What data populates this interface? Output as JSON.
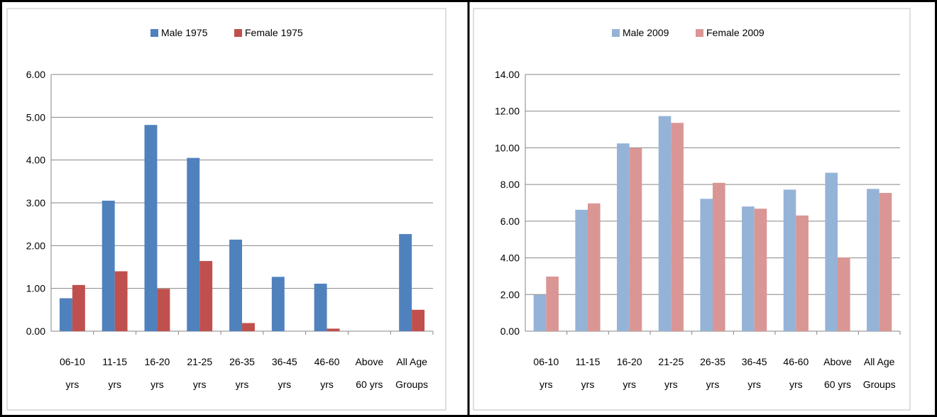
{
  "chart_data": [
    {
      "type": "bar",
      "categories": [
        [
          "06-10",
          "yrs"
        ],
        [
          "11-15",
          "yrs"
        ],
        [
          "16-20",
          "yrs"
        ],
        [
          "21-25",
          "yrs"
        ],
        [
          "26-35",
          "yrs"
        ],
        [
          "36-45",
          "yrs"
        ],
        [
          "46-60",
          "yrs"
        ],
        [
          "Above",
          "60 yrs"
        ],
        [
          "All Age",
          "Groups"
        ]
      ],
      "series": [
        {
          "name": "Male 1975",
          "color": "#4F81BD",
          "values": [
            0.77,
            3.05,
            4.82,
            4.05,
            2.14,
            1.27,
            1.11,
            0,
            2.27
          ]
        },
        {
          "name": "Female 1975",
          "color": "#C0504D",
          "values": [
            1.08,
            1.4,
            0.99,
            1.64,
            0.19,
            0,
            0.06,
            0,
            0.5
          ]
        }
      ],
      "ylim": [
        0,
        6
      ],
      "yticks": [
        "0.00",
        "1.00",
        "2.00",
        "3.00",
        "4.00",
        "5.00",
        "6.00"
      ],
      "grid": true,
      "legend": "top"
    },
    {
      "type": "bar",
      "categories": [
        [
          "06-10",
          "yrs"
        ],
        [
          "11-15",
          "yrs"
        ],
        [
          "16-20",
          "yrs"
        ],
        [
          "21-25",
          "yrs"
        ],
        [
          "26-35",
          "yrs"
        ],
        [
          "36-45",
          "yrs"
        ],
        [
          "46-60",
          "yrs"
        ],
        [
          "Above",
          "60 yrs"
        ],
        [
          "All Age",
          "Groups"
        ]
      ],
      "series": [
        {
          "name": "Male 2009",
          "color": "#95B3D7",
          "values": [
            1.98,
            6.62,
            10.24,
            11.73,
            7.22,
            6.8,
            7.72,
            8.64,
            7.76
          ]
        },
        {
          "name": "Female 2009",
          "color": "#D99694",
          "values": [
            2.98,
            6.97,
            9.98,
            11.36,
            8.09,
            6.68,
            6.31,
            4.02,
            7.54
          ]
        }
      ],
      "ylim": [
        0,
        14
      ],
      "yticks": [
        "0.00",
        "2.00",
        "4.00",
        "6.00",
        "8.00",
        "10.00",
        "12.00",
        "14.00"
      ],
      "grid": true,
      "legend": "top"
    }
  ]
}
